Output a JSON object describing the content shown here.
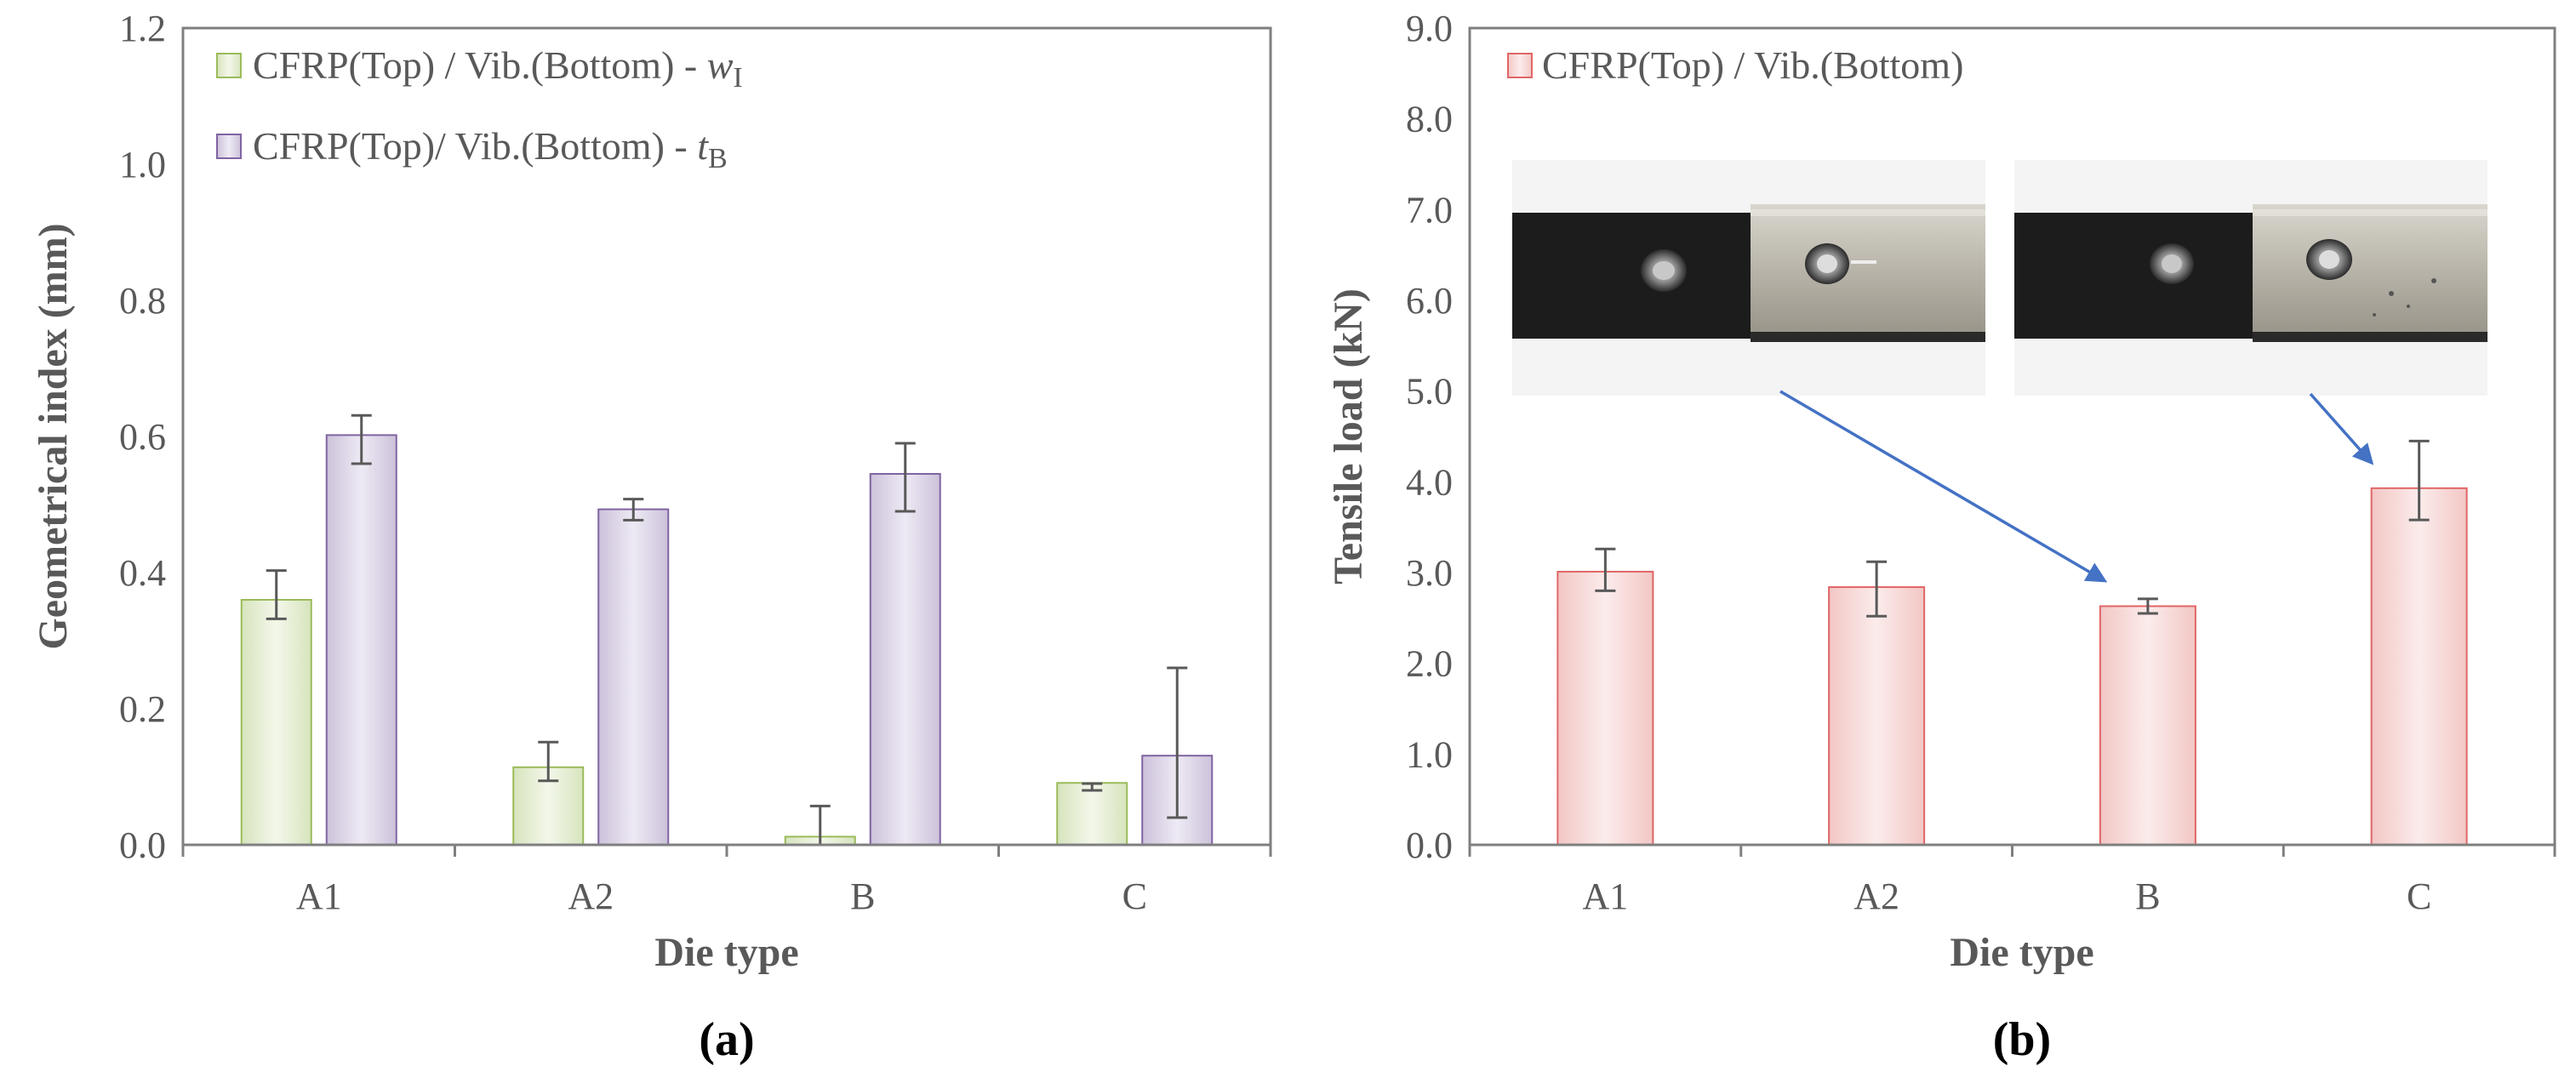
{
  "chart_data": [
    {
      "type": "bar",
      "panel_label": "(a)",
      "xlabel": "Die type",
      "ylabel": "Geometrical index (mm)",
      "ylim": [
        0,
        1.2
      ],
      "yticks": [
        "0.0",
        "0.2",
        "0.4",
        "0.6",
        "0.8",
        "1.0",
        "1.2"
      ],
      "categories": [
        "A1",
        "A2",
        "B",
        "C"
      ],
      "series": [
        {
          "name": "CFRP(Top) / Vib.(Bottom) - ",
          "name_symbol": "w",
          "name_subscript": "I",
          "color": "#9bbb59",
          "fill": "#ebf1de",
          "values": [
            0.36,
            0.114,
            0.012,
            0.091
          ],
          "err_low": [
            0.332,
            0.094,
            0.0,
            0.08
          ],
          "err_high": [
            0.403,
            0.151,
            0.057,
            0.09
          ]
        },
        {
          "name": "CFRP(Top)/ Vib.(Bottom) - ",
          "name_symbol": "t",
          "name_subscript": "B",
          "color": "#8064a2",
          "fill": "#e4dfec",
          "values": [
            0.602,
            0.493,
            0.545,
            0.131
          ],
          "err_low": [
            0.56,
            0.477,
            0.49,
            0.04
          ],
          "err_high": [
            0.631,
            0.508,
            0.59,
            0.26
          ]
        }
      ]
    },
    {
      "type": "bar",
      "panel_label": "(b)",
      "xlabel": "Die type",
      "ylabel": "Tensile load (kN)",
      "ylim": [
        0,
        9
      ],
      "yticks": [
        "0.0",
        "1.0",
        "2.0",
        "3.0",
        "4.0",
        "5.0",
        "6.0",
        "7.0",
        "8.0",
        "9.0"
      ],
      "categories": [
        "A1",
        "A2",
        "B",
        "C"
      ],
      "series": [
        {
          "name": "CFRP(Top) / Vib.(Bottom)",
          "color": "#e06666",
          "fill": "#f2dcdb",
          "values": [
            3.01,
            2.84,
            2.63,
            3.93
          ],
          "err_low": [
            2.8,
            2.52,
            2.55,
            3.58
          ],
          "err_high": [
            3.26,
            3.12,
            2.71,
            4.45
          ]
        }
      ],
      "insets": [
        {
          "name": "specimen-photo-B",
          "points_to": "B"
        },
        {
          "name": "specimen-photo-C",
          "points_to": "C"
        }
      ],
      "arrow_color": "#4472c4"
    }
  ],
  "colors": {
    "axis": "#7f7f7f",
    "text": "#595959",
    "errorbar": "#595959"
  }
}
